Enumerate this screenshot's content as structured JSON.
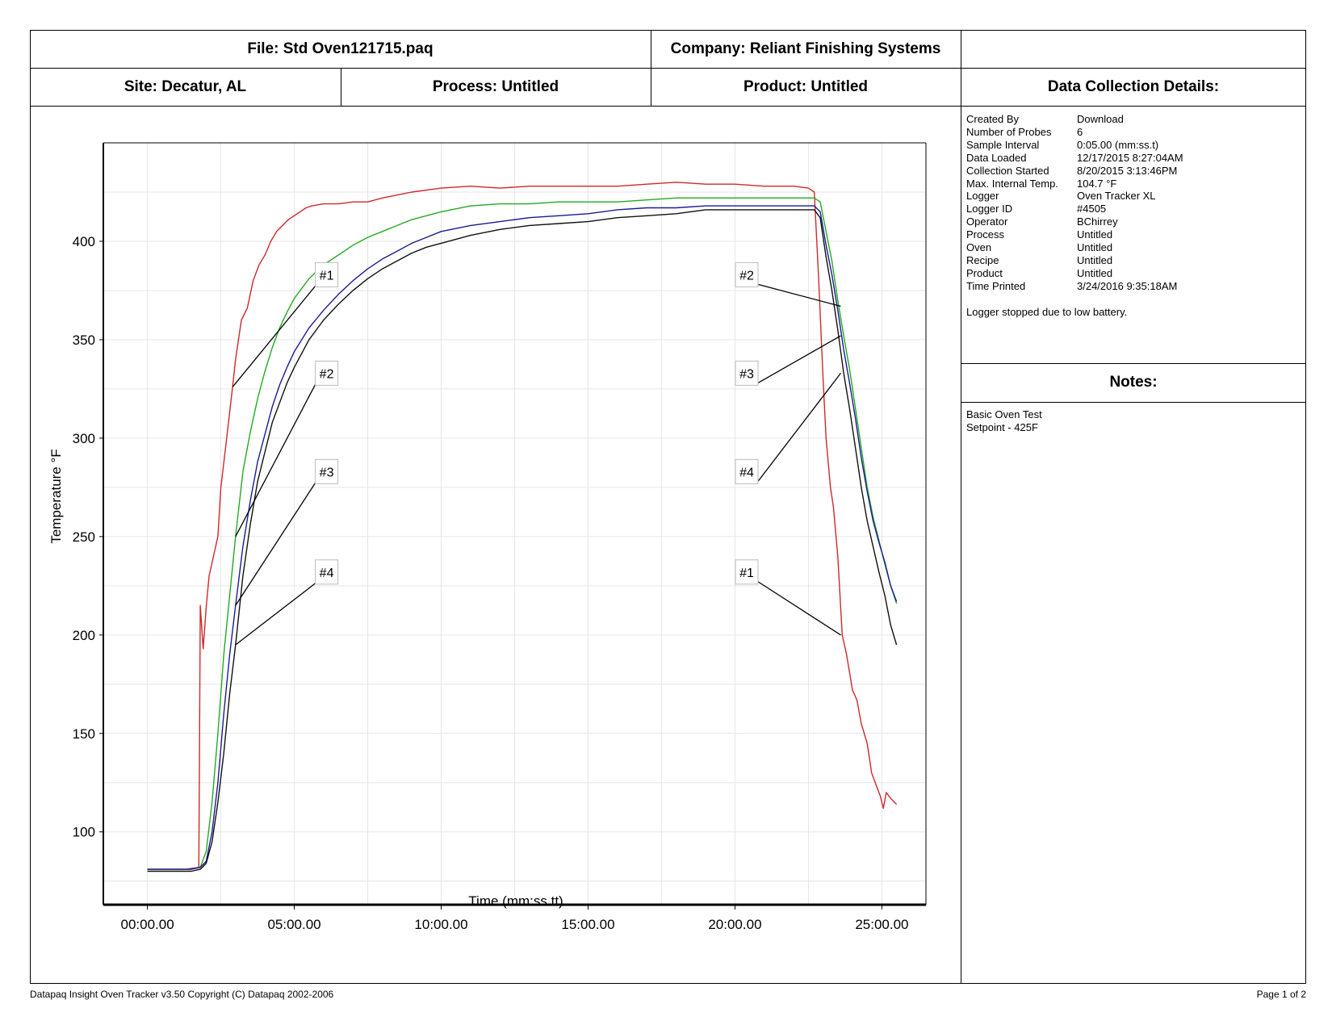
{
  "header": {
    "file": "File: Std Oven121715.paq",
    "company": "Company: Reliant Finishing Systems",
    "site": "Site: Decatur, AL",
    "process": "Process: Untitled",
    "product": "Product: Untitled",
    "details_title": "Data Collection Details:",
    "notes_title": "Notes:"
  },
  "details": [
    {
      "key": "Created By",
      "value": "Download"
    },
    {
      "key": "Number of Probes",
      "value": "6"
    },
    {
      "key": "Sample Interval",
      "value": "0:05.00 (mm:ss.t)"
    },
    {
      "key": "Data Loaded",
      "value": "12/17/2015 8:27:04AM"
    },
    {
      "key": "Collection Started",
      "value": "8/20/2015 3:13:46PM"
    },
    {
      "key": "Max. Internal Temp.",
      "value": "104.7 °F"
    },
    {
      "key": "Logger",
      "value": "Oven Tracker XL"
    },
    {
      "key": "Logger ID",
      "value": "#4505"
    },
    {
      "key": "Operator",
      "value": "BChirrey"
    },
    {
      "key": "Process",
      "value": "Untitled"
    },
    {
      "key": "Oven",
      "value": "Untitled"
    },
    {
      "key": "Recipe",
      "value": "Untitled"
    },
    {
      "key": "Product",
      "value": "Untitled"
    },
    {
      "key": "Time Printed",
      "value": "3/24/2016 9:35:18AM"
    }
  ],
  "status_message": "Logger stopped due to low battery.",
  "notes": [
    "Basic Oven Test",
    "Setpoint - 425F"
  ],
  "footer": {
    "left": "Datapaq Insight Oven Tracker v3.50  Copyright (C) Datapaq 2002-2006",
    "right": "Page 1 of 2"
  },
  "chart_data": {
    "type": "line",
    "xlabel": "Time (mm:ss.tt)",
    "ylabel": "Temperature °F",
    "x_unit": "minutes",
    "xlim": [
      -1.5,
      26.5
    ],
    "ylim": [
      63,
      450
    ],
    "x_ticks": [
      {
        "value": 0,
        "label": "00:00.00"
      },
      {
        "value": 5,
        "label": "05:00.00"
      },
      {
        "value": 10,
        "label": "10:00.00"
      },
      {
        "value": 15,
        "label": "15:00.00"
      },
      {
        "value": 20,
        "label": "20:00.00"
      },
      {
        "value": 25,
        "label": "25:00.00"
      }
    ],
    "y_ticks": [
      100,
      150,
      200,
      250,
      300,
      350,
      400
    ],
    "grid": true,
    "series": [
      {
        "name": "#1",
        "color": "#cc2a2a",
        "points": [
          [
            0,
            81
          ],
          [
            1.3,
            81
          ],
          [
            1.75,
            82
          ],
          [
            1.8,
            215
          ],
          [
            1.9,
            193
          ],
          [
            2.0,
            214
          ],
          [
            2.1,
            230
          ],
          [
            2.4,
            250
          ],
          [
            2.5,
            275
          ],
          [
            2.7,
            300
          ],
          [
            2.9,
            326
          ],
          [
            3.0,
            340
          ],
          [
            3.2,
            360
          ],
          [
            3.4,
            366
          ],
          [
            3.6,
            380
          ],
          [
            3.8,
            388
          ],
          [
            4.0,
            393
          ],
          [
            4.2,
            400
          ],
          [
            4.4,
            405
          ],
          [
            4.6,
            408
          ],
          [
            4.8,
            411
          ],
          [
            5.0,
            413
          ],
          [
            5.2,
            415
          ],
          [
            5.4,
            417
          ],
          [
            5.6,
            418
          ],
          [
            6.0,
            419
          ],
          [
            6.5,
            419
          ],
          [
            7.0,
            420
          ],
          [
            7.5,
            420
          ],
          [
            8.0,
            422
          ],
          [
            9.0,
            425
          ],
          [
            10.0,
            427
          ],
          [
            11.0,
            428
          ],
          [
            12.0,
            427
          ],
          [
            13.0,
            428
          ],
          [
            14.0,
            428
          ],
          [
            15.0,
            428
          ],
          [
            16.0,
            428
          ],
          [
            17.0,
            429
          ],
          [
            18.0,
            430
          ],
          [
            19.0,
            429
          ],
          [
            20.0,
            429
          ],
          [
            21.0,
            428
          ],
          [
            22.0,
            428
          ],
          [
            22.5,
            427
          ],
          [
            22.7,
            425
          ],
          [
            22.85,
            380
          ],
          [
            23.0,
            330
          ],
          [
            23.1,
            300
          ],
          [
            23.25,
            275
          ],
          [
            23.35,
            265
          ],
          [
            23.5,
            240
          ],
          [
            23.65,
            200
          ],
          [
            23.8,
            190
          ],
          [
            24.0,
            172
          ],
          [
            24.15,
            167
          ],
          [
            24.3,
            155
          ],
          [
            24.5,
            145
          ],
          [
            24.65,
            130
          ],
          [
            24.8,
            124
          ],
          [
            24.95,
            118
          ],
          [
            25.05,
            112
          ],
          [
            25.15,
            120
          ],
          [
            25.3,
            117
          ],
          [
            25.5,
            114
          ]
        ]
      },
      {
        "name": "#2",
        "color": "#22aa22",
        "points": [
          [
            0,
            81
          ],
          [
            1.5,
            81
          ],
          [
            1.8,
            82
          ],
          [
            2.0,
            90
          ],
          [
            2.2,
            115
          ],
          [
            2.4,
            150
          ],
          [
            2.6,
            190
          ],
          [
            2.8,
            220
          ],
          [
            3.0,
            250
          ],
          [
            3.25,
            283
          ],
          [
            3.5,
            303
          ],
          [
            3.75,
            320
          ],
          [
            4.0,
            334
          ],
          [
            4.25,
            346
          ],
          [
            4.5,
            356
          ],
          [
            4.75,
            364
          ],
          [
            5.0,
            371
          ],
          [
            5.5,
            381
          ],
          [
            6.0,
            388
          ],
          [
            6.5,
            393
          ],
          [
            7.0,
            398
          ],
          [
            7.5,
            402
          ],
          [
            8.0,
            405
          ],
          [
            8.5,
            408
          ],
          [
            9.0,
            411
          ],
          [
            9.5,
            413
          ],
          [
            10.0,
            415
          ],
          [
            11.0,
            418
          ],
          [
            12.0,
            419
          ],
          [
            13.0,
            419
          ],
          [
            14.0,
            420
          ],
          [
            15.0,
            420
          ],
          [
            16.0,
            420
          ],
          [
            17.0,
            421
          ],
          [
            18.0,
            422
          ],
          [
            19.0,
            422
          ],
          [
            20.0,
            422
          ],
          [
            21.0,
            422
          ],
          [
            22.0,
            422
          ],
          [
            22.7,
            422
          ],
          [
            22.9,
            420
          ],
          [
            23.1,
            405
          ],
          [
            23.3,
            390
          ],
          [
            23.5,
            370
          ],
          [
            23.7,
            352
          ],
          [
            23.9,
            335
          ],
          [
            24.1,
            315
          ],
          [
            24.3,
            295
          ],
          [
            24.5,
            275
          ],
          [
            24.7,
            260
          ],
          [
            24.9,
            248
          ],
          [
            25.1,
            236
          ],
          [
            25.3,
            225
          ],
          [
            25.5,
            216
          ]
        ]
      },
      {
        "name": "#3",
        "color": "#1a1a99",
        "points": [
          [
            0,
            81
          ],
          [
            1.5,
            81
          ],
          [
            1.8,
            82
          ],
          [
            2.0,
            85
          ],
          [
            2.2,
            100
          ],
          [
            2.4,
            125
          ],
          [
            2.6,
            160
          ],
          [
            2.8,
            190
          ],
          [
            3.0,
            215
          ],
          [
            3.25,
            245
          ],
          [
            3.5,
            268
          ],
          [
            3.75,
            288
          ],
          [
            4.0,
            302
          ],
          [
            4.25,
            316
          ],
          [
            4.5,
            327
          ],
          [
            4.75,
            336
          ],
          [
            5.0,
            344
          ],
          [
            5.5,
            356
          ],
          [
            6.0,
            365
          ],
          [
            6.5,
            373
          ],
          [
            7.0,
            380
          ],
          [
            7.5,
            386
          ],
          [
            8.0,
            391
          ],
          [
            8.5,
            395
          ],
          [
            9.0,
            399
          ],
          [
            9.5,
            402
          ],
          [
            10.0,
            405
          ],
          [
            11.0,
            408
          ],
          [
            12.0,
            410
          ],
          [
            13.0,
            412
          ],
          [
            14.0,
            413
          ],
          [
            15.0,
            414
          ],
          [
            16.0,
            416
          ],
          [
            17.0,
            417
          ],
          [
            18.0,
            417
          ],
          [
            19.0,
            418
          ],
          [
            20.0,
            418
          ],
          [
            21.0,
            418
          ],
          [
            22.0,
            418
          ],
          [
            22.7,
            418
          ],
          [
            22.9,
            415
          ],
          [
            23.1,
            398
          ],
          [
            23.3,
            383
          ],
          [
            23.5,
            365
          ],
          [
            23.7,
            345
          ],
          [
            23.9,
            328
          ],
          [
            24.1,
            310
          ],
          [
            24.3,
            290
          ],
          [
            24.5,
            273
          ],
          [
            24.7,
            258
          ],
          [
            24.9,
            247
          ],
          [
            25.1,
            237
          ],
          [
            25.3,
            225
          ],
          [
            25.5,
            217
          ]
        ]
      },
      {
        "name": "#4",
        "color": "#111111",
        "points": [
          [
            0,
            80
          ],
          [
            1.5,
            80
          ],
          [
            1.8,
            81
          ],
          [
            2.0,
            84
          ],
          [
            2.2,
            95
          ],
          [
            2.4,
            115
          ],
          [
            2.6,
            140
          ],
          [
            2.8,
            170
          ],
          [
            3.0,
            195
          ],
          [
            3.25,
            230
          ],
          [
            3.5,
            256
          ],
          [
            3.75,
            278
          ],
          [
            4.0,
            293
          ],
          [
            4.25,
            308
          ],
          [
            4.5,
            318
          ],
          [
            4.75,
            328
          ],
          [
            5.0,
            336
          ],
          [
            5.5,
            350
          ],
          [
            6.0,
            360
          ],
          [
            6.5,
            368
          ],
          [
            7.0,
            375
          ],
          [
            7.5,
            381
          ],
          [
            8.0,
            386
          ],
          [
            8.5,
            390
          ],
          [
            9.0,
            394
          ],
          [
            9.5,
            397
          ],
          [
            10.0,
            399
          ],
          [
            11.0,
            403
          ],
          [
            12.0,
            406
          ],
          [
            13.0,
            408
          ],
          [
            14.0,
            409
          ],
          [
            15.0,
            410
          ],
          [
            16.0,
            412
          ],
          [
            17.0,
            413
          ],
          [
            18.0,
            414
          ],
          [
            19.0,
            416
          ],
          [
            20.0,
            416
          ],
          [
            21.0,
            416
          ],
          [
            22.0,
            416
          ],
          [
            22.7,
            416
          ],
          [
            22.9,
            412
          ],
          [
            23.1,
            392
          ],
          [
            23.3,
            375
          ],
          [
            23.5,
            355
          ],
          [
            23.7,
            333
          ],
          [
            23.9,
            315
          ],
          [
            24.1,
            295
          ],
          [
            24.3,
            275
          ],
          [
            24.5,
            258
          ],
          [
            24.7,
            245
          ],
          [
            24.9,
            232
          ],
          [
            25.1,
            220
          ],
          [
            25.3,
            205
          ],
          [
            25.5,
            195
          ]
        ]
      }
    ],
    "callouts": [
      {
        "label": "#1",
        "box": [
          6.1,
          383
        ],
        "target": [
          2.9,
          326
        ]
      },
      {
        "label": "#2",
        "box": [
          6.1,
          333
        ],
        "target": [
          3.0,
          250
        ]
      },
      {
        "label": "#3",
        "box": [
          6.1,
          283
        ],
        "target": [
          3.0,
          215
        ]
      },
      {
        "label": "#4",
        "box": [
          6.1,
          232
        ],
        "target": [
          3.0,
          195
        ]
      },
      {
        "label": "#2",
        "box": [
          20.4,
          383
        ],
        "target": [
          23.6,
          367
        ]
      },
      {
        "label": "#3",
        "box": [
          20.4,
          333
        ],
        "target": [
          23.6,
          352
        ]
      },
      {
        "label": "#4",
        "box": [
          20.4,
          283
        ],
        "target": [
          23.6,
          333
        ]
      },
      {
        "label": "#1",
        "box": [
          20.4,
          232
        ],
        "target": [
          23.6,
          200
        ]
      }
    ]
  }
}
